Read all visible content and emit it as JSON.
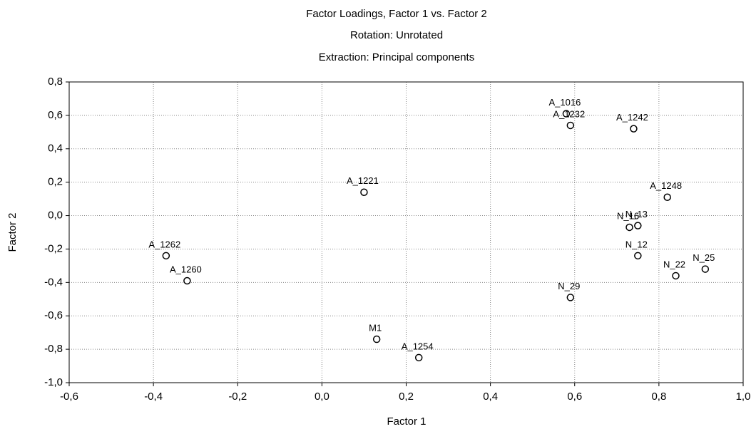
{
  "chart_data": {
    "type": "scatter",
    "title": "Factor Loadings, Factor 1 vs. Factor 2",
    "subtitle": [
      "Rotation: Unrotated",
      "Extraction: Principal components"
    ],
    "x_label": "Factor 1",
    "y_label": "Factor 2",
    "labels": [
      "A_1016",
      "A_1232",
      "A_1242",
      "A_1221",
      "A_1248",
      "N_16",
      "N_13",
      "A_1262",
      "N_12",
      "A_1260",
      "N_22",
      "N_25",
      "N_29",
      "M1",
      "A_1254"
    ],
    "x": [
      0.58,
      0.59,
      0.74,
      0.1,
      0.82,
      0.73,
      0.75,
      -0.37,
      0.75,
      -0.32,
      0.84,
      0.91,
      0.59,
      0.13,
      0.23
    ],
    "values": [
      0.61,
      0.54,
      0.52,
      0.14,
      0.11,
      -0.07,
      -0.06,
      -0.24,
      -0.24,
      -0.39,
      -0.36,
      -0.32,
      -0.49,
      -0.74,
      -0.85
    ],
    "color": "#000000",
    "xlim": [
      -0.6,
      1.0
    ],
    "ylim": [
      -1.0,
      0.8
    ],
    "xticks": [
      {
        "value": -0.6,
        "label": "-0,6"
      },
      {
        "value": -0.4,
        "label": "-0,4"
      },
      {
        "value": -0.2,
        "label": "-0,2"
      },
      {
        "value": 0.0,
        "label": "0,0"
      },
      {
        "value": 0.2,
        "label": "0,2"
      },
      {
        "value": 0.4,
        "label": "0,4"
      },
      {
        "value": 0.6,
        "label": "0,6"
      },
      {
        "value": 0.8,
        "label": "0,8"
      },
      {
        "value": 1.0,
        "label": "1,0"
      }
    ],
    "yticks": [
      {
        "value": -1.0,
        "label": "-1,0"
      },
      {
        "value": -0.8,
        "label": "-0,8"
      },
      {
        "value": -0.6,
        "label": "-0,6"
      },
      {
        "value": -0.4,
        "label": "-0,4"
      },
      {
        "value": -0.2,
        "label": "-0,2"
      },
      {
        "value": 0.0,
        "label": "0,0"
      },
      {
        "value": 0.2,
        "label": "0,2"
      },
      {
        "value": 0.4,
        "label": "0,4"
      },
      {
        "value": 0.6,
        "label": "0,6"
      },
      {
        "value": 0.8,
        "label": "0,8"
      }
    ],
    "grid": true
  }
}
